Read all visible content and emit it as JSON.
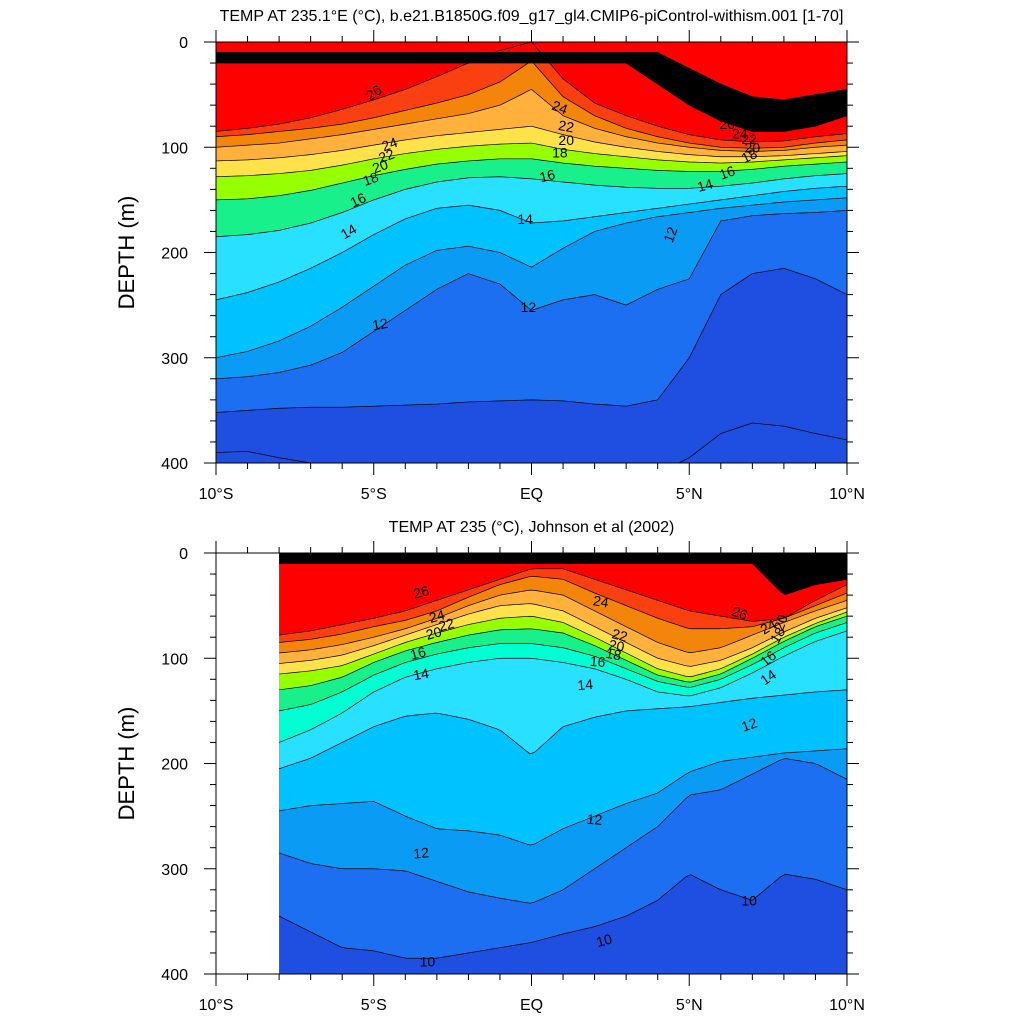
{
  "chart_data": [
    {
      "type": "contour",
      "title": "TEMP AT 235.1°E (°C), b.e21.B1850G.f09_g17_gl4.CMIP6-piControl-withism.001 [1-70]",
      "ylabel": "DEPTH (m)",
      "x_ticks": [
        "10°S",
        "5°S",
        "EQ",
        "5°N",
        "10°N"
      ],
      "x_tick_values": [
        -10,
        -5,
        0,
        5,
        10
      ],
      "y_ticks": [
        "0",
        "100",
        "200",
        "300",
        "400"
      ],
      "y_tick_values": [
        0,
        100,
        200,
        300,
        400
      ],
      "xlim": [
        -10,
        10
      ],
      "ylim": [
        400,
        0
      ],
      "y_reversed": true,
      "data_xlim": [
        -10,
        10
      ],
      "contour_interval": 1,
      "x": [
        -10,
        -9,
        -8,
        -7,
        -6,
        -5,
        -4,
        -3,
        -2,
        -1,
        0,
        1,
        2,
        3,
        4,
        5,
        6,
        7,
        8,
        9,
        10
      ],
      "isotherms": [
        {
          "value": 28,
          "depth": [
            null,
            null,
            null,
            null,
            null,
            null,
            null,
            null,
            null,
            null,
            null,
            null,
            null,
            null,
            10,
            25,
            40,
            52,
            55,
            50,
            45
          ]
        },
        {
          "value": 27,
          "depth": [
            null,
            null,
            null,
            null,
            null,
            null,
            null,
            null,
            null,
            null,
            null,
            null,
            null,
            20,
            40,
            60,
            75,
            85,
            85,
            80,
            70
          ]
        },
        {
          "value": 26,
          "depth": [
            85,
            82,
            78,
            72,
            64,
            55,
            45,
            33,
            20,
            8,
            0,
            35,
            58,
            70,
            80,
            88,
            93,
            95,
            94,
            90,
            87
          ]
        },
        {
          "value": 25,
          "depth": [
            90,
            88,
            85,
            82,
            78,
            72,
            65,
            58,
            50,
            38,
            18,
            52,
            70,
            82,
            90,
            96,
            100,
            101,
            100,
            96,
            93
          ]
        },
        {
          "value": 24,
          "depth": [
            100,
            98,
            96,
            92,
            88,
            83,
            78,
            73,
            68,
            60,
            45,
            70,
            82,
            90,
            96,
            100,
            103,
            104,
            103,
            100,
            98
          ]
        },
        {
          "value": 22,
          "depth": [
            113,
            112,
            110,
            107,
            103,
            98,
            93,
            89,
            86,
            83,
            80,
            88,
            95,
            100,
            104,
            107,
            109,
            109,
            108,
            106,
            104
          ]
        },
        {
          "value": 20,
          "depth": [
            128,
            127,
            125,
            122,
            117,
            111,
            106,
            102,
            99,
            97,
            96,
            102,
            106,
            109,
            112,
            114,
            115,
            114,
            112,
            110,
            108
          ]
        },
        {
          "value": 18,
          "depth": [
            150,
            149,
            146,
            141,
            134,
            127,
            121,
            116,
            113,
            111,
            111,
            115,
            118,
            120,
            122,
            123,
            123,
            121,
            118,
            116,
            114
          ]
        },
        {
          "value": 16,
          "depth": [
            185,
            183,
            179,
            172,
            162,
            150,
            140,
            133,
            129,
            128,
            130,
            133,
            136,
            138,
            139,
            139,
            137,
            134,
            130,
            127,
            125
          ]
        },
        {
          "value": 14,
          "depth": [
            245,
            238,
            228,
            215,
            200,
            183,
            168,
            158,
            155,
            160,
            172,
            170,
            166,
            162,
            158,
            154,
            150,
            146,
            142,
            139,
            137
          ]
        },
        {
          "value": 13,
          "depth": [
            300,
            294,
            284,
            270,
            252,
            232,
            212,
            198,
            194,
            200,
            214,
            196,
            180,
            172,
            166,
            162,
            158,
            155,
            152,
            150,
            148
          ]
        },
        {
          "value": 12,
          "depth": [
            320,
            318,
            314,
            307,
            295,
            275,
            255,
            235,
            220,
            230,
            255,
            245,
            240,
            250,
            235,
            225,
            170,
            165,
            163,
            162,
            160
          ]
        },
        {
          "value": 11,
          "depth": [
            352,
            350,
            348,
            347,
            347,
            346,
            345,
            344,
            342,
            341,
            340,
            341,
            344,
            346,
            340,
            300,
            240,
            220,
            215,
            225,
            240
          ]
        },
        {
          "value": 10,
          "depth": [
            390,
            389,
            395,
            400,
            null,
            null,
            null,
            null,
            null,
            null,
            null,
            null,
            null,
            null,
            410,
            395,
            372,
            362,
            365,
            372,
            378
          ]
        }
      ],
      "contour_labels": [
        "26",
        "24",
        "22",
        "20",
        "18",
        "16",
        "14",
        "12",
        "24",
        "22",
        "20",
        "18",
        "16",
        "14",
        "12",
        "26",
        "24",
        "22",
        "20",
        "18",
        "16",
        "14",
        "12"
      ]
    },
    {
      "type": "contour",
      "title": "TEMP AT 235 (°C), Johnson et al (2002)",
      "ylabel": "DEPTH (m)",
      "x_ticks": [
        "10°S",
        "5°S",
        "EQ",
        "5°N",
        "10°N"
      ],
      "x_tick_values": [
        -10,
        -5,
        0,
        5,
        10
      ],
      "y_ticks": [
        "0",
        "100",
        "200",
        "300",
        "400"
      ],
      "y_tick_values": [
        0,
        100,
        200,
        300,
        400
      ],
      "xlim": [
        -10,
        10
      ],
      "ylim": [
        400,
        0
      ],
      "y_reversed": true,
      "data_xlim": [
        -8,
        10
      ],
      "contour_interval": 1,
      "x": [
        -8,
        -7,
        -6,
        -5,
        -4,
        -3,
        -2,
        -1,
        0,
        1,
        2,
        3,
        4,
        5,
        6,
        7,
        8,
        9,
        10
      ],
      "isotherms": [
        {
          "value": 27,
          "depth": [
            null,
            null,
            null,
            null,
            null,
            null,
            null,
            null,
            null,
            null,
            null,
            null,
            null,
            null,
            null,
            10,
            40,
            30,
            25
          ]
        },
        {
          "value": 26,
          "depth": [
            78,
            74,
            68,
            62,
            55,
            45,
            35,
            25,
            15,
            15,
            25,
            35,
            45,
            55,
            60,
            65,
            62,
            45,
            30
          ]
        },
        {
          "value": 25,
          "depth": [
            85,
            82,
            77,
            70,
            64,
            55,
            42,
            30,
            22,
            25,
            38,
            50,
            62,
            72,
            72,
            70,
            62,
            50,
            38
          ]
        },
        {
          "value": 24,
          "depth": [
            95,
            92,
            87,
            80,
            72,
            62,
            50,
            40,
            35,
            40,
            55,
            70,
            85,
            95,
            90,
            78,
            66,
            55,
            45
          ]
        },
        {
          "value": 22,
          "depth": [
            105,
            102,
            97,
            88,
            78,
            68,
            58,
            50,
            48,
            55,
            70,
            85,
            100,
            108,
            102,
            90,
            75,
            62,
            52
          ]
        },
        {
          "value": 20,
          "depth": [
            115,
            112,
            107,
            96,
            85,
            76,
            68,
            62,
            60,
            66,
            80,
            95,
            110,
            118,
            110,
            96,
            80,
            67,
            56
          ]
        },
        {
          "value": 18,
          "depth": [
            130,
            126,
            118,
            104,
            93,
            85,
            78,
            73,
            72,
            76,
            88,
            102,
            116,
            123,
            115,
            100,
            84,
            70,
            60
          ]
        },
        {
          "value": 16,
          "depth": [
            150,
            144,
            132,
            116,
            104,
            96,
            90,
            86,
            86,
            90,
            98,
            110,
            122,
            128,
            120,
            106,
            90,
            76,
            66
          ]
        },
        {
          "value": 15,
          "depth": [
            180,
            168,
            152,
            132,
            118,
            110,
            104,
            100,
            100,
            104,
            110,
            120,
            132,
            136,
            128,
            114,
            98,
            84,
            74
          ]
        },
        {
          "value": 14,
          "depth": [
            205,
            195,
            180,
            165,
            155,
            152,
            158,
            168,
            192,
            165,
            156,
            150,
            148,
            146,
            142,
            138,
            135,
            132,
            130
          ]
        },
        {
          "value": 13,
          "depth": [
            245,
            240,
            238,
            236,
            250,
            262,
            264,
            268,
            278,
            262,
            250,
            238,
            228,
            208,
            198,
            194,
            190,
            188,
            186
          ]
        },
        {
          "value": 12,
          "depth": [
            285,
            295,
            300,
            300,
            302,
            312,
            322,
            328,
            333,
            320,
            300,
            280,
            260,
            230,
            225,
            210,
            195,
            200,
            215
          ]
        },
        {
          "value": 11,
          "depth": [
            345,
            360,
            375,
            378,
            385,
            385,
            380,
            375,
            370,
            362,
            355,
            345,
            330,
            305,
            320,
            330,
            305,
            310,
            320
          ]
        },
        {
          "value": 10,
          "depth": [
            400,
            400,
            400,
            400,
            400,
            400,
            400,
            400,
            400,
            400,
            400,
            400,
            400,
            400,
            400,
            400,
            400,
            400,
            400
          ]
        }
      ],
      "contour_labels": [
        "26",
        "24",
        "22",
        "20",
        "16",
        "14",
        "12",
        "10",
        "24",
        "22",
        "20",
        "18",
        "16",
        "14",
        "12",
        "10",
        "26",
        "24",
        "20",
        "18",
        "16",
        "14",
        "12",
        "10"
      ]
    }
  ],
  "colors": {
    "ramp": [
      "#1f4fe0",
      "#1b6ff0",
      "#0a9bf4",
      "#00c2ff",
      "#28e0ff",
      "#00ffd2",
      "#18f08c",
      "#00e600",
      "#96ff00",
      "#ffff00",
      "#ffe14a",
      "#ffc844",
      "#ffb13c",
      "#f99a2c",
      "#f2850a",
      "#fa4010",
      "#ff0000"
    ],
    "ramp_bounds": [
      10,
      11,
      12,
      13,
      14,
      15,
      16,
      17,
      18,
      19,
      20,
      21,
      22,
      23,
      24,
      25,
      26,
      27,
      28
    ]
  }
}
